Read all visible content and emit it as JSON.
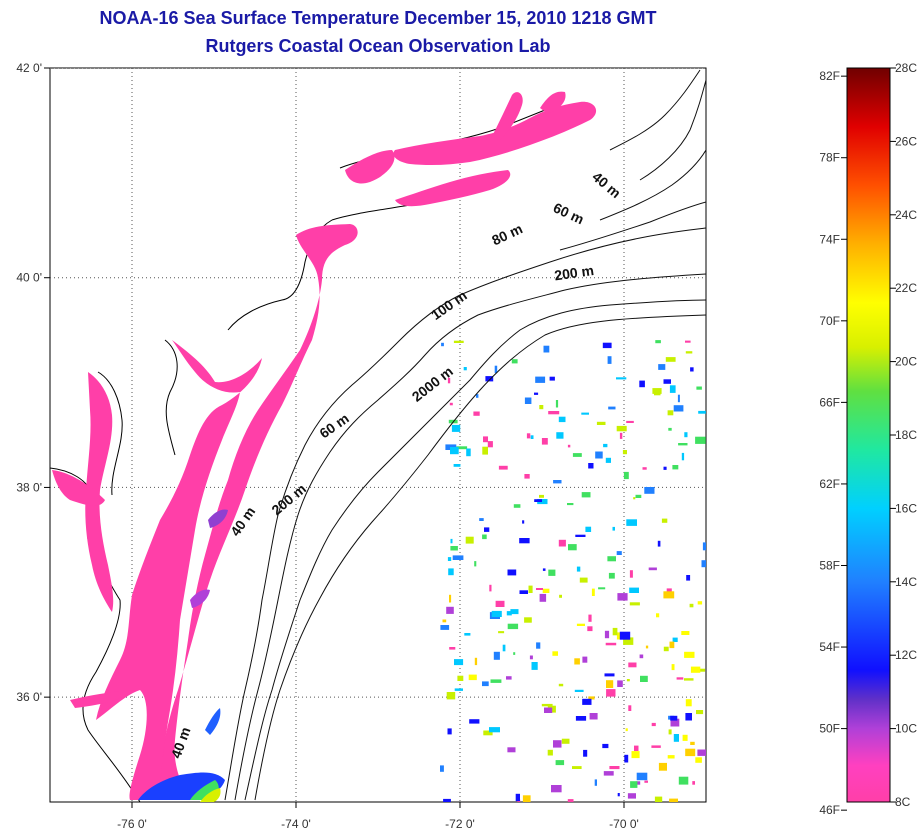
{
  "title": "NOAA-16 Sea Surface Temperature December 15, 2010 1218 GMT",
  "subtitle": "Rutgers Coastal Ocean Observation Lab",
  "map": {
    "lon_ticks": [
      "-76 0'",
      "-74 0'",
      "-72 0'",
      "-70 0'"
    ],
    "lat_ticks": [
      "42 0'",
      "40 0'",
      "38 0'",
      "36 0'"
    ],
    "lon_range": [
      -77.0,
      -69.0
    ],
    "lat_range": [
      35.0,
      42.0
    ],
    "grid": "dotted",
    "land_color": "#ffffff",
    "isobath_labels": [
      {
        "text": "40 m",
        "lon": -70.25,
        "lat": 40.85,
        "angle": 40
      },
      {
        "text": "60 m",
        "lon": -70.7,
        "lat": 40.57,
        "angle": 25
      },
      {
        "text": "80 m",
        "lon": -71.4,
        "lat": 40.37,
        "angle": -25
      },
      {
        "text": "200 m",
        "lon": -70.6,
        "lat": 40.0,
        "angle": -8
      },
      {
        "text": "100 m",
        "lon": -72.1,
        "lat": 39.7,
        "angle": -35
      },
      {
        "text": "2000 m",
        "lon": -72.3,
        "lat": 38.95,
        "angle": -38
      },
      {
        "text": "60 m",
        "lon": -73.5,
        "lat": 38.55,
        "angle": -35
      },
      {
        "text": "200 m",
        "lon": -74.05,
        "lat": 37.85,
        "angle": -40
      },
      {
        "text": "40 m",
        "lon": -74.6,
        "lat": 37.65,
        "angle": -55
      },
      {
        "text": "40 m",
        "lon": -75.35,
        "lat": 35.55,
        "angle": -70
      }
    ]
  },
  "colorbar": {
    "f_labels": [
      "82F",
      "78F",
      "74F",
      "70F",
      "66F",
      "62F",
      "58F",
      "54F",
      "50F",
      "46F"
    ],
    "c_labels": [
      "28C",
      "26C",
      "24C",
      "22C",
      "20C",
      "18C",
      "16C",
      "14C",
      "12C",
      "10C",
      "8C"
    ],
    "range_c": [
      8,
      28
    ],
    "colors": [
      "#ff3fa8",
      "#c040d0",
      "#7030c8",
      "#1010ff",
      "#2080ff",
      "#00c8ff",
      "#00e8c8",
      "#40e060",
      "#c8f000",
      "#ffff00",
      "#ffc000",
      "#ff8000",
      "#ff4000",
      "#e00000",
      "#a00000",
      "#700000"
    ]
  }
}
